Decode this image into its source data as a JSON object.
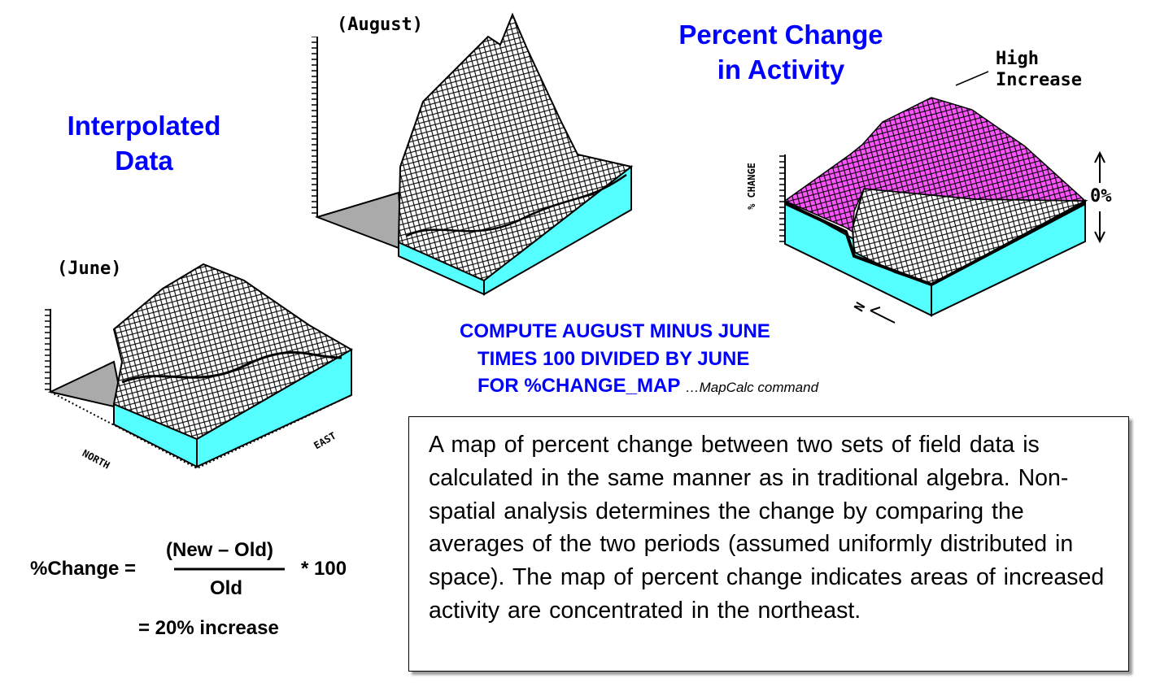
{
  "left_panel": {
    "title_line1": "Interpolated",
    "title_line2": "Data",
    "june_label": "(June)",
    "august_label": "(August)",
    "axis_north": "NORTH",
    "axis_east": "EAST"
  },
  "right_panel": {
    "title_line1": "Percent Change",
    "title_line2": "in Activity",
    "high_line1": "High",
    "high_line2": "Increase",
    "zero_label": "0%",
    "axis_change": "% CHANGE",
    "north_label": "N"
  },
  "command": {
    "line1": "COMPUTE AUGUST MINUS JUNE",
    "line2": "TIMES 100 DIVIDED BY JUNE",
    "line3": "FOR %CHANGE_MAP",
    "note": "…MapCalc command"
  },
  "formula": {
    "lhs": "%Change =",
    "numerator": "(New – Old)",
    "denominator": "Old",
    "multiplier": "* 100",
    "result": "= 20% increase"
  },
  "description": "A map of percent change between two sets of field data is calculated in the same manner as in traditional algebra.  Non-spatial analysis determines the change by comparing the averages of the two periods (assumed uniformly distributed in space). The map of percent change indicates areas of increased activity are concentrated in the northeast.",
  "colors": {
    "title_blue": "#0000ff",
    "block_side": "#55ffff",
    "increase_fill": "#ff55ff",
    "floor": "#aaaaaa"
  }
}
